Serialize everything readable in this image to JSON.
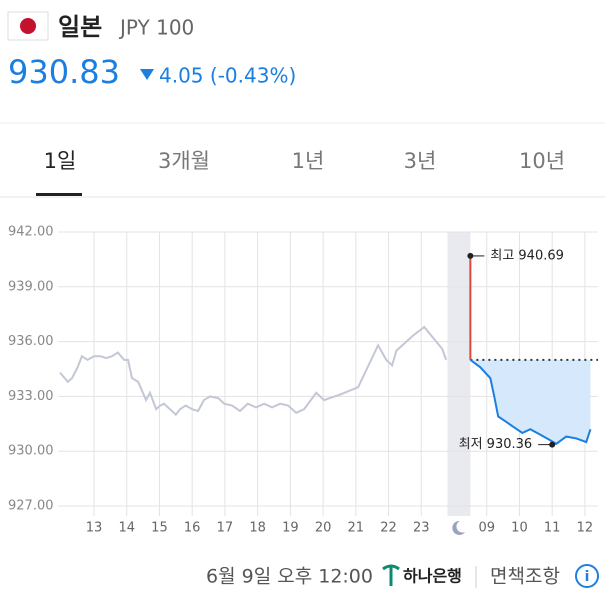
{
  "header": {
    "country": "일본",
    "code": "JPY 100"
  },
  "price": {
    "value": "930.83",
    "change": "4.05 (-0.43%)"
  },
  "tabs": [
    "1일",
    "3개월",
    "1년",
    "3년",
    "10년"
  ],
  "chart_data": {
    "type": "line",
    "xlim": [
      11.9,
      28.4
    ],
    "ylim": [
      927,
      942
    ],
    "yticks": [
      {
        "value": 942,
        "label": "942.00"
      },
      {
        "value": 939,
        "label": "939.00"
      },
      {
        "value": 936,
        "label": "936.00"
      },
      {
        "value": 933,
        "label": "933.00"
      },
      {
        "value": 930,
        "label": "930.00"
      },
      {
        "value": 927,
        "label": "927.00"
      }
    ],
    "xticks": [
      13,
      14,
      15,
      16,
      17,
      18,
      19,
      20,
      21,
      22,
      23,
      {
        "value": 25,
        "label": "09"
      },
      {
        "value": 26,
        "label": "10"
      },
      {
        "value": 27,
        "label": "11"
      },
      {
        "value": 28,
        "label": "12"
      }
    ],
    "grid": true,
    "night_band": [
      23.8,
      24.5
    ],
    "reference": 935.0,
    "series": [
      {
        "color": "#c3c7d6",
        "x": [
          11.96,
          12.2,
          12.33,
          12.5,
          12.63,
          12.8,
          13,
          13.2,
          13.37,
          13.55,
          13.73,
          13.92,
          14.04,
          14.16,
          14.35,
          14.47,
          14.59,
          14.71,
          14.9,
          15.02,
          15.14,
          15.32,
          15.5,
          15.63,
          15.8,
          16,
          16.18,
          16.36,
          16.55,
          16.8,
          16.98,
          17.22,
          17.46,
          17.7,
          17.95,
          18.2,
          18.44,
          18.69,
          18.93,
          19.18,
          19.42,
          19.79,
          20.03,
          20.52,
          21.07,
          21.68,
          21.93,
          22.11,
          22.24,
          22.73,
          23.09,
          23.64,
          23.76
        ],
        "values": [
          934.3,
          933.8,
          934.0,
          934.6,
          935.2,
          935.0,
          935.2,
          935.2,
          935.1,
          935.2,
          935.4,
          935.0,
          935.0,
          934.0,
          933.8,
          933.3,
          932.8,
          933.2,
          932.3,
          932.5,
          932.6,
          932.3,
          932.0,
          932.3,
          932.5,
          932.3,
          932.2,
          932.8,
          933.0,
          932.9,
          932.6,
          932.5,
          932.2,
          932.6,
          932.4,
          932.6,
          932.4,
          932.6,
          932.5,
          932.1,
          932.3,
          933.2,
          932.8,
          933.1,
          933.5,
          935.8,
          935.0,
          934.7,
          935.5,
          936.3,
          936.8,
          935.6,
          935.0
        ]
      },
      {
        "color": "#e0483b",
        "x": [
          24.5,
          24.5
        ],
        "values": [
          940.69,
          935.0
        ]
      },
      {
        "color": "#1a7fe0",
        "x": [
          24.5,
          24.8,
          25.11,
          25.23,
          25.35,
          25.6,
          25.84,
          26.09,
          26.33,
          26.64,
          26.94,
          27.12,
          27.43,
          27.74,
          28.04,
          28.17
        ],
        "values": [
          935.0,
          934.6,
          934.0,
          933.0,
          931.9,
          931.6,
          931.3,
          931.0,
          931.2,
          930.9,
          930.6,
          930.4,
          930.8,
          930.7,
          930.5,
          931.2
        ]
      }
    ],
    "annotations": [
      {
        "text": "최고 940.69",
        "x": 24.5,
        "y": 940.69,
        "side": "right"
      },
      {
        "text": "최저 930.36",
        "x": 27.0,
        "y": 930.36,
        "side": "left"
      }
    ]
  },
  "footer": {
    "timestamp": "6월 9일 오후 12:00",
    "bank": "하나은행",
    "disclaimer": "면책조항"
  }
}
